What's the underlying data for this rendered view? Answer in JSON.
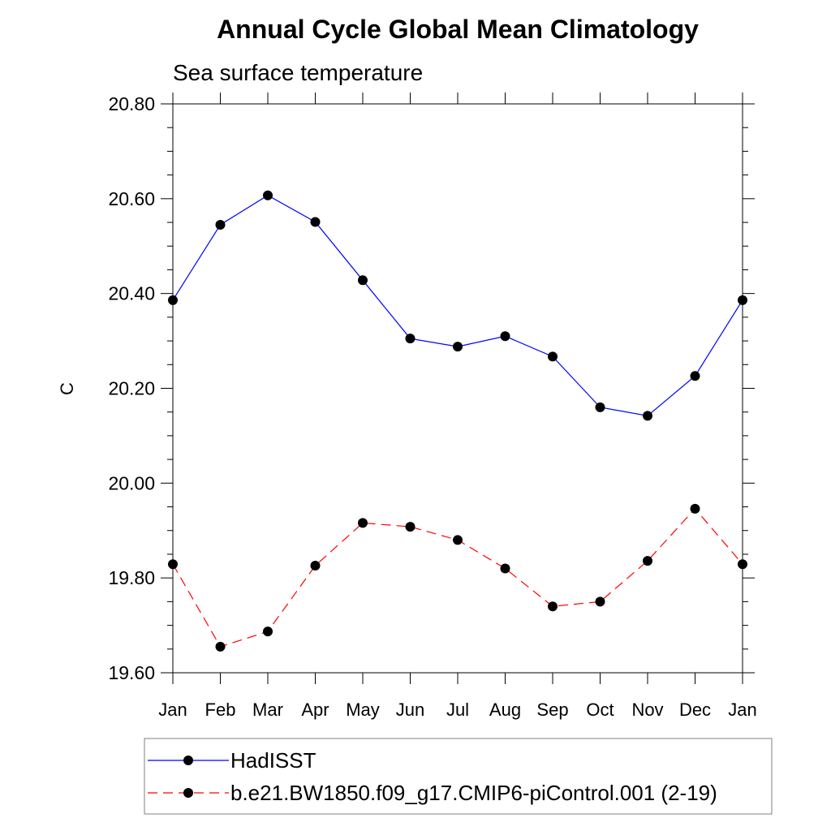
{
  "chart_data": {
    "type": "line",
    "title": "Annual Cycle Global Mean Climatology",
    "subtitle": "Sea surface temperature",
    "xlabel": "",
    "ylabel": "C",
    "categories": [
      "Jan",
      "Feb",
      "Mar",
      "Apr",
      "May",
      "Jun",
      "Jul",
      "Aug",
      "Sep",
      "Oct",
      "Nov",
      "Dec",
      "Jan"
    ],
    "ylim": [
      19.6,
      20.8
    ],
    "yticks": [
      "19.60",
      "19.80",
      "20.00",
      "20.20",
      "20.40",
      "20.60",
      "20.80"
    ],
    "grid": false,
    "legend_position": "bottom",
    "series": [
      {
        "name": "HadISST",
        "color": "#0000ff",
        "dash": "solid",
        "values": [
          20.386,
          20.545,
          20.607,
          20.551,
          20.428,
          20.305,
          20.288,
          20.31,
          20.267,
          20.16,
          20.142,
          20.226,
          20.386
        ]
      },
      {
        "name": "b.e21.BW1850.f09_g17.CMIP6-piControl.001 (2-19)",
        "color": "#ff0000",
        "dash": "dashed",
        "values": [
          19.829,
          19.655,
          19.687,
          19.826,
          19.916,
          19.908,
          19.88,
          19.82,
          19.74,
          19.75,
          19.836,
          19.946,
          19.829
        ]
      }
    ]
  }
}
